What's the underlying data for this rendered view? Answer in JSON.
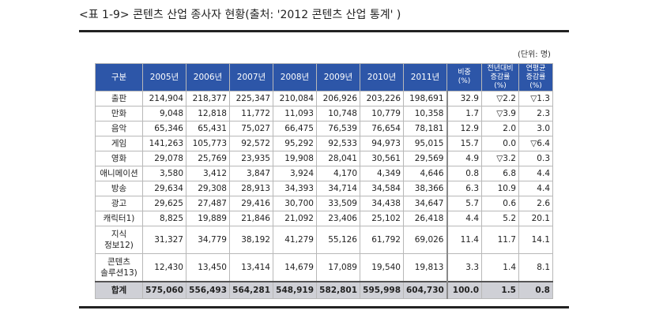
{
  "caption": "<표 1-9> 콘텐츠 산업 종사자 현황(출처:  '2012 콘텐츠 산업 통계' )",
  "unit": "(단위: 명)",
  "headers": {
    "category": "구분",
    "years": [
      "2005년",
      "2006년",
      "2007년",
      "2008년",
      "2009년",
      "2010년",
      "2011년"
    ],
    "share": [
      "비중",
      "(%)"
    ],
    "yoy": [
      "전년대비",
      "증감률(%)"
    ],
    "cagr": [
      "연평균",
      "증감률(%)"
    ]
  },
  "rows": [
    {
      "label": [
        "출판"
      ],
      "values": [
        "214,904",
        "218,377",
        "225,347",
        "210,084",
        "206,926",
        "203,226",
        "198,691"
      ],
      "share": "32.9",
      "yoy": "▽2.2",
      "cagr": "▽1.3"
    },
    {
      "label": [
        "만화"
      ],
      "values": [
        "9,048",
        "12,818",
        "11,772",
        "11,093",
        "10,748",
        "10,779",
        "10,358"
      ],
      "share": "1.7",
      "yoy": "▽3.9",
      "cagr": "2.3"
    },
    {
      "label": [
        "음악"
      ],
      "values": [
        "65,346",
        "65,431",
        "75,027",
        "66,475",
        "76,539",
        "76,654",
        "78,181"
      ],
      "share": "12.9",
      "yoy": "2.0",
      "cagr": "3.0"
    },
    {
      "label": [
        "게임"
      ],
      "values": [
        "141,263",
        "105,773",
        "92,572",
        "95,292",
        "92,533",
        "94,973",
        "95,015"
      ],
      "share": "15.7",
      "yoy": "0.0",
      "cagr": "▽6.4"
    },
    {
      "label": [
        "영화"
      ],
      "values": [
        "29,078",
        "25,769",
        "23,935",
        "19,908",
        "28,041",
        "30,561",
        "29,569"
      ],
      "share": "4.9",
      "yoy": "▽3.2",
      "cagr": "0.3"
    },
    {
      "label": [
        "애니메이션"
      ],
      "values": [
        "3,580",
        "3,412",
        "3,847",
        "3,924",
        "4,170",
        "4,349",
        "4,646"
      ],
      "share": "0.8",
      "yoy": "6.8",
      "cagr": "4.4"
    },
    {
      "label": [
        "방송"
      ],
      "values": [
        "29,634",
        "29,308",
        "28,913",
        "34,393",
        "34,714",
        "34,584",
        "38,366"
      ],
      "share": "6.3",
      "yoy": "10.9",
      "cagr": "4.4"
    },
    {
      "label": [
        "광고"
      ],
      "values": [
        "29,625",
        "27,487",
        "29,416",
        "30,700",
        "33,509",
        "34,438",
        "34,647"
      ],
      "share": "5.7",
      "yoy": "0.6",
      "cagr": "2.6"
    },
    {
      "label": [
        "캐릭터1)"
      ],
      "values": [
        "8,825",
        "19,889",
        "21,846",
        "21,092",
        "23,406",
        "25,102",
        "26,418"
      ],
      "share": "4.4",
      "yoy": "5.2",
      "cagr": "20.1"
    },
    {
      "label": [
        "지식",
        "정보12)"
      ],
      "values": [
        "31,327",
        "34,779",
        "38,192",
        "41,279",
        "55,126",
        "61,792",
        "69,026"
      ],
      "share": "11.4",
      "yoy": "11.7",
      "cagr": "14.1"
    },
    {
      "label": [
        "콘텐츠",
        "솔루션13)"
      ],
      "values": [
        "12,430",
        "13,450",
        "13,414",
        "14,679",
        "17,089",
        "19,540",
        "19,813"
      ],
      "share": "3.3",
      "yoy": "1.4",
      "cagr": "8.1"
    }
  ],
  "total": {
    "label": "합계",
    "values": [
      "575,060",
      "556,493",
      "564,281",
      "548,919",
      "582,801",
      "595,998",
      "604,730"
    ],
    "share": "100.0",
    "yoy": "1.5",
    "cagr": "0.8"
  }
}
